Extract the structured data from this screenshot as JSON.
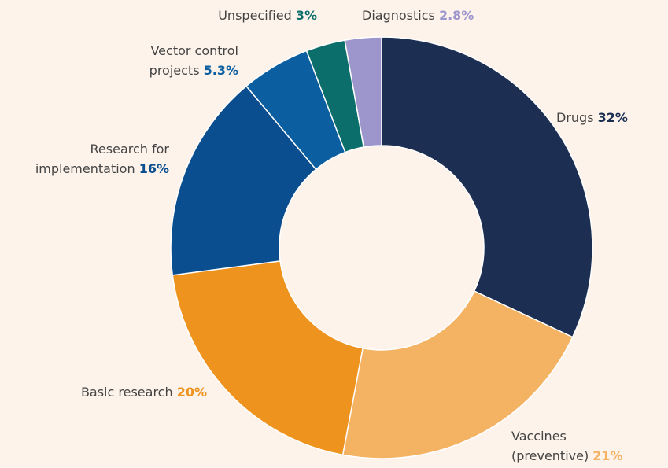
{
  "chart_data": {
    "type": "donut",
    "categories": [
      "Drugs",
      "Vaccines\n(preventive)",
      "Basic research",
      "Research for\nimplementation",
      "Vector control\nprojects",
      "Unspecified",
      "Diagnostics"
    ],
    "values": [
      32,
      21,
      20,
      16,
      5.3,
      3,
      2.8
    ],
    "value_labels": [
      "32%",
      "21%",
      "20%",
      "16%",
      "5.3%",
      "3%",
      "2.8%"
    ],
    "colors": [
      "#1c2f53",
      "#f4b263",
      "#ef931f",
      "#0a4e8f",
      "#0b5fa0",
      "#0b6e6b",
      "#9c96cc"
    ],
    "label_colors": [
      "#1c2f53",
      "#f4b263",
      "#ef931f",
      "#0a4e8f",
      "#0b5fa0",
      "#0b6e6b",
      "#9c96cc"
    ]
  }
}
